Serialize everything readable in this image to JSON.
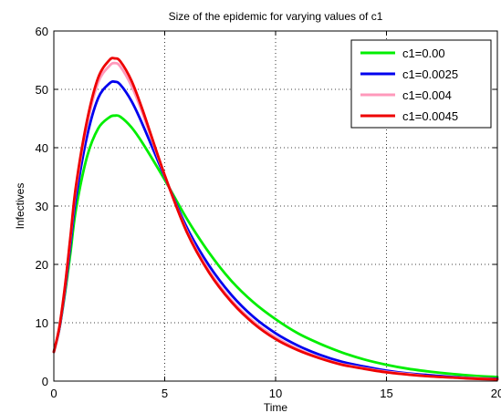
{
  "chart_data": {
    "type": "line",
    "title": "Size of the epidemic for varying values of c1",
    "xlabel": "Time",
    "ylabel": "Infectives",
    "xlim": [
      0,
      20
    ],
    "ylim": [
      0,
      60
    ],
    "xticks": [
      0,
      5,
      10,
      15,
      20
    ],
    "xtick_labels": [
      "0",
      "5",
      "10",
      "15",
      "20"
    ],
    "yticks": [
      0,
      10,
      20,
      30,
      40,
      50,
      60
    ],
    "ytick_labels": [
      "0",
      "10",
      "20",
      "30",
      "40",
      "50",
      "60"
    ],
    "grid": true,
    "legend_position": "top-right",
    "x": [
      0,
      0.25,
      0.5,
      0.75,
      1,
      1.5,
      2,
      2.5,
      2.75,
      3,
      3.5,
      4,
      5,
      6,
      7,
      8,
      9,
      10,
      11,
      12,
      13,
      14,
      15,
      16,
      17,
      18,
      19,
      20
    ],
    "series": [
      {
        "name": "c1=0.00",
        "color": "#00ee00",
        "values": [
          5,
          9,
          15,
          22,
          29.5,
          38.5,
          43.3,
          45.2,
          45.5,
          45.3,
          43.5,
          40.8,
          34.5,
          27.8,
          22,
          17.2,
          13.5,
          10.6,
          8.2,
          6.4,
          4.9,
          3.7,
          2.8,
          2.1,
          1.6,
          1.2,
          0.9,
          0.7
        ]
      },
      {
        "name": "c1=0.0025",
        "color": "#0000ee",
        "values": [
          5,
          9,
          15.5,
          23.5,
          31.5,
          42,
          48.5,
          51,
          51.3,
          50.8,
          48,
          44,
          35,
          26.3,
          19.8,
          14.8,
          11,
          8.2,
          6.1,
          4.5,
          3.3,
          2.5,
          1.8,
          1.3,
          1,
          0.7,
          0.5,
          0.4
        ]
      },
      {
        "name": "c1=0.004",
        "color": "#ff99bb",
        "values": [
          5,
          9.2,
          16,
          24.5,
          33,
          44,
          51.2,
          54,
          54.5,
          53.9,
          50.6,
          45.9,
          35.2,
          25.7,
          18.9,
          13.9,
          10.2,
          7.5,
          5.5,
          4,
          2.9,
          2.2,
          1.6,
          1.2,
          0.8,
          0.6,
          0.5,
          0.3
        ]
      },
      {
        "name": "c1=0.0045",
        "color": "#ee0000",
        "values": [
          5,
          9.3,
          16.2,
          24.8,
          33.5,
          44.7,
          52,
          55,
          55.3,
          54.8,
          51.5,
          46.5,
          35.3,
          25.5,
          18.6,
          13.6,
          9.9,
          7.2,
          5.3,
          3.9,
          2.8,
          2.1,
          1.5,
          1.1,
          0.8,
          0.6,
          0.4,
          0.3
        ]
      }
    ]
  }
}
